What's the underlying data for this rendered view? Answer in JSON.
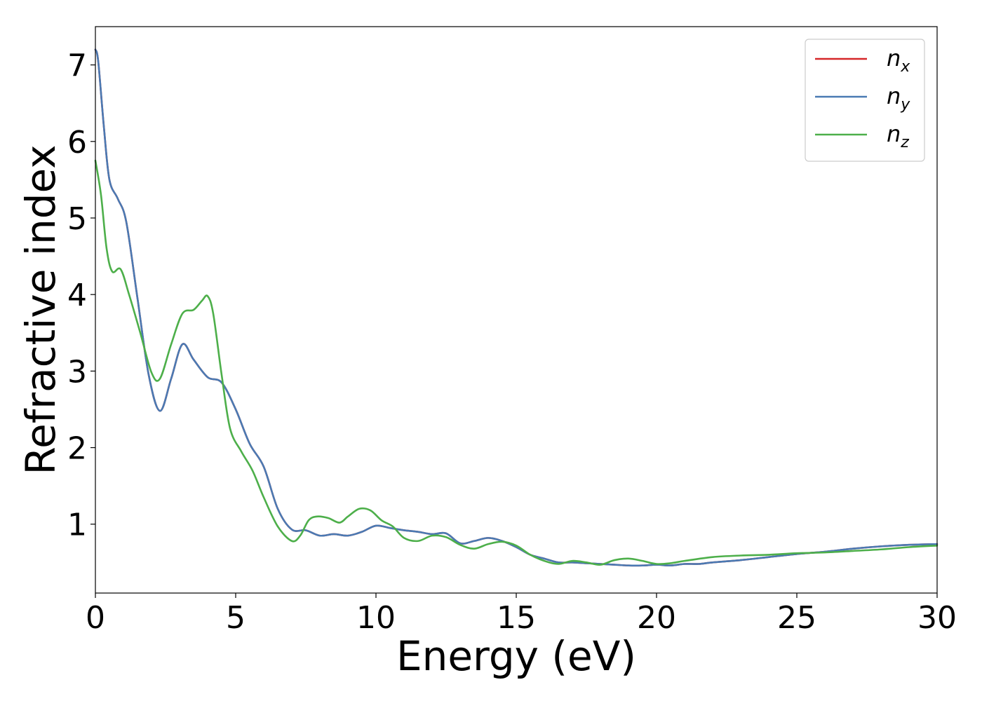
{
  "chart_data": {
    "type": "line",
    "xlabel": "Energy (eV)",
    "ylabel": "Refractive index",
    "xlim": [
      0,
      30
    ],
    "ylim": [
      0.1,
      7.5
    ],
    "xticks": [
      0,
      5,
      10,
      15,
      20,
      25,
      30
    ],
    "yticks": [
      1,
      2,
      3,
      4,
      5,
      6,
      7
    ],
    "grid": false,
    "legend_position": "top-right",
    "series": [
      {
        "name": "n_x",
        "label_main": "n",
        "label_sub": "x",
        "color": "#d62728",
        "x": [
          0,
          0.1,
          0.3,
          0.5,
          0.8,
          1.1,
          1.5,
          1.9,
          2.3,
          2.7,
          3.1,
          3.5,
          4.0,
          4.5,
          5.0,
          5.5,
          6.0,
          6.5,
          7.0,
          7.5,
          8.0,
          8.5,
          9.0,
          9.5,
          10.0,
          10.5,
          11.0,
          11.5,
          12.0,
          12.5,
          13.0,
          13.5,
          14.0,
          14.5,
          15.0,
          15.5,
          16.0,
          16.5,
          17.0,
          17.5,
          18.0,
          18.5,
          19.0,
          19.5,
          20.0,
          20.5,
          21.0,
          21.5,
          22.0,
          23.0,
          24.0,
          25.0,
          26.0,
          27.0,
          28.0,
          29.0,
          30.0
        ],
        "y": [
          7.2,
          7.05,
          6.2,
          5.5,
          5.25,
          4.95,
          3.95,
          2.95,
          2.48,
          2.9,
          3.35,
          3.15,
          2.92,
          2.85,
          2.5,
          2.05,
          1.75,
          1.2,
          0.93,
          0.92,
          0.85,
          0.87,
          0.85,
          0.9,
          0.98,
          0.95,
          0.92,
          0.9,
          0.87,
          0.88,
          0.75,
          0.78,
          0.82,
          0.78,
          0.7,
          0.6,
          0.55,
          0.5,
          0.5,
          0.49,
          0.48,
          0.47,
          0.46,
          0.46,
          0.47,
          0.46,
          0.48,
          0.48,
          0.5,
          0.53,
          0.57,
          0.61,
          0.64,
          0.68,
          0.71,
          0.73,
          0.74
        ]
      },
      {
        "name": "n_y",
        "label_main": "n",
        "label_sub": "y",
        "color": "#4a7ab3",
        "x": [
          0,
          0.1,
          0.3,
          0.5,
          0.8,
          1.1,
          1.5,
          1.9,
          2.3,
          2.7,
          3.1,
          3.5,
          4.0,
          4.5,
          5.0,
          5.5,
          6.0,
          6.5,
          7.0,
          7.5,
          8.0,
          8.5,
          9.0,
          9.5,
          10.0,
          10.5,
          11.0,
          11.5,
          12.0,
          12.5,
          13.0,
          13.5,
          14.0,
          14.5,
          15.0,
          15.5,
          16.0,
          16.5,
          17.0,
          17.5,
          18.0,
          18.5,
          19.0,
          19.5,
          20.0,
          20.5,
          21.0,
          21.5,
          22.0,
          23.0,
          24.0,
          25.0,
          26.0,
          27.0,
          28.0,
          29.0,
          30.0
        ],
        "y": [
          7.2,
          7.05,
          6.2,
          5.5,
          5.25,
          4.95,
          3.95,
          2.95,
          2.48,
          2.9,
          3.35,
          3.15,
          2.92,
          2.85,
          2.5,
          2.05,
          1.75,
          1.2,
          0.93,
          0.92,
          0.85,
          0.87,
          0.85,
          0.9,
          0.98,
          0.95,
          0.92,
          0.9,
          0.87,
          0.88,
          0.75,
          0.78,
          0.82,
          0.78,
          0.7,
          0.6,
          0.55,
          0.5,
          0.5,
          0.49,
          0.48,
          0.47,
          0.46,
          0.46,
          0.47,
          0.46,
          0.48,
          0.48,
          0.5,
          0.53,
          0.57,
          0.61,
          0.64,
          0.68,
          0.71,
          0.73,
          0.74
        ]
      },
      {
        "name": "n_z",
        "label_main": "n",
        "label_sub": "z",
        "color": "#4daf4a",
        "x": [
          0,
          0.2,
          0.4,
          0.6,
          0.9,
          1.2,
          1.6,
          2.0,
          2.3,
          2.7,
          3.1,
          3.5,
          3.8,
          4.0,
          4.2,
          4.5,
          4.8,
          5.2,
          5.6,
          6.0,
          6.5,
          7.0,
          7.3,
          7.6,
          7.9,
          8.3,
          8.7,
          9.0,
          9.4,
          9.8,
          10.2,
          10.6,
          11.0,
          11.5,
          12.0,
          12.5,
          13.0,
          13.5,
          14.0,
          14.5,
          15.0,
          15.5,
          16.0,
          16.5,
          17.0,
          17.5,
          18.0,
          18.5,
          19.0,
          19.5,
          20.0,
          20.5,
          21.0,
          22.0,
          23.0,
          24.0,
          25.0,
          26.0,
          27.0,
          28.0,
          29.0,
          30.0
        ],
        "y": [
          5.75,
          5.3,
          4.6,
          4.3,
          4.33,
          4.0,
          3.5,
          2.98,
          2.9,
          3.35,
          3.75,
          3.8,
          3.92,
          3.98,
          3.75,
          2.95,
          2.25,
          1.95,
          1.7,
          1.35,
          0.97,
          0.78,
          0.85,
          1.05,
          1.1,
          1.08,
          1.02,
          1.1,
          1.2,
          1.18,
          1.05,
          0.97,
          0.82,
          0.78,
          0.85,
          0.83,
          0.73,
          0.68,
          0.74,
          0.77,
          0.72,
          0.6,
          0.52,
          0.48,
          0.52,
          0.5,
          0.47,
          0.53,
          0.55,
          0.52,
          0.48,
          0.49,
          0.52,
          0.57,
          0.59,
          0.6,
          0.62,
          0.63,
          0.65,
          0.67,
          0.7,
          0.72
        ]
      }
    ]
  }
}
